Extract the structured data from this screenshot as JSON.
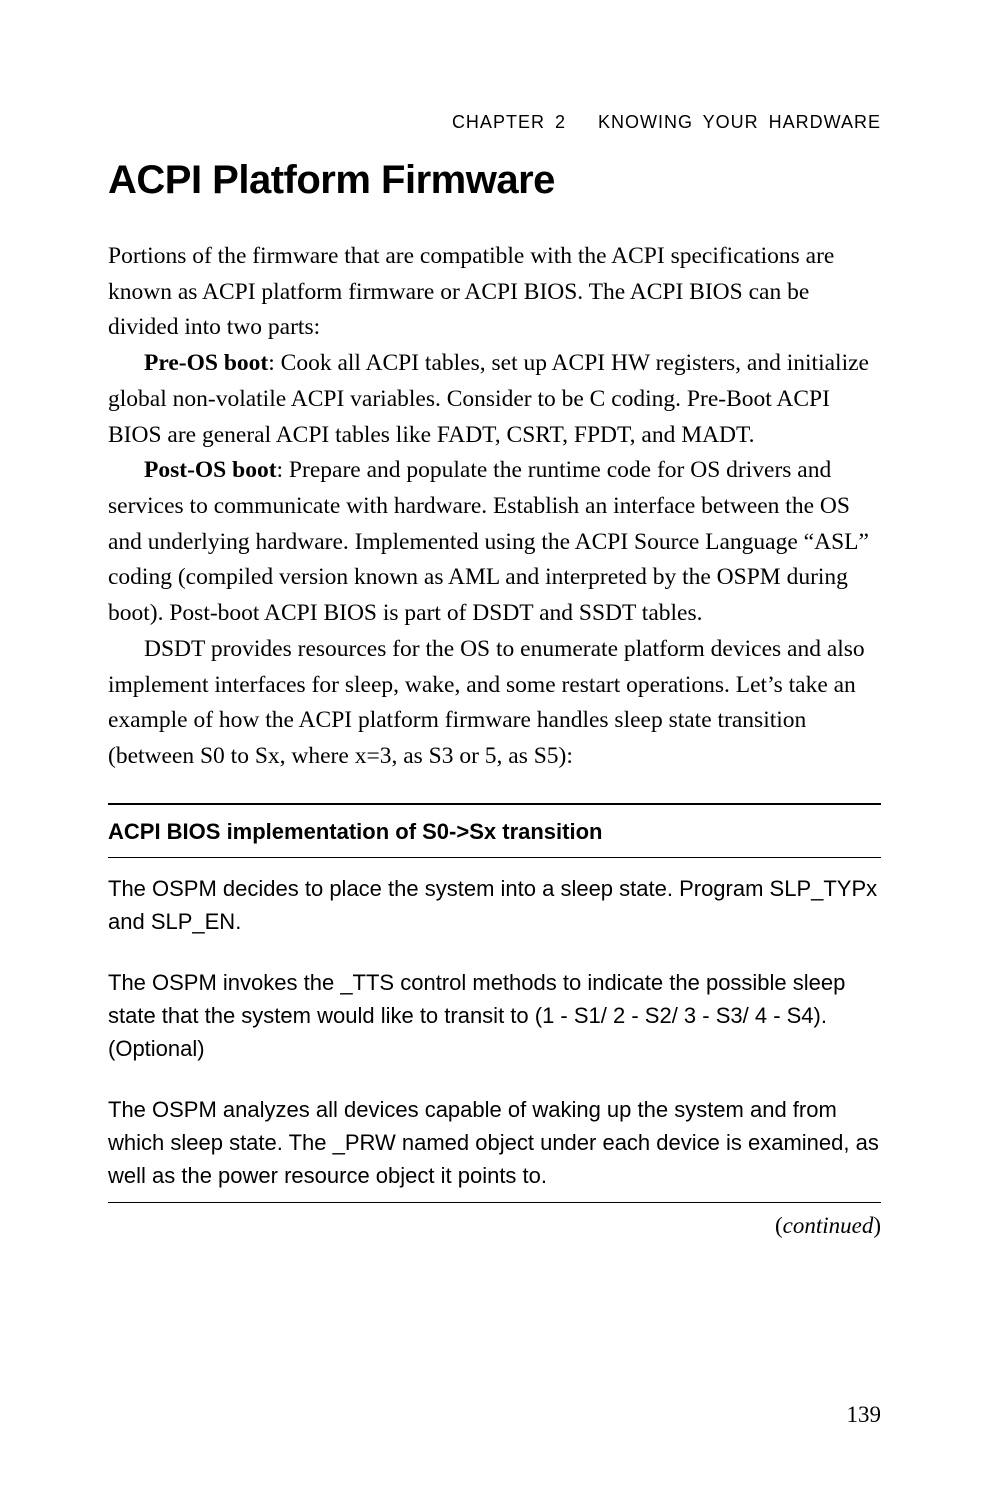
{
  "header": {
    "chapter": "CHAPTER 2",
    "title": "KNOWING YOUR HARDWARE"
  },
  "heading": "ACPI Platform Firmware",
  "paragraphs": {
    "p1": "Portions of the firmware that are compatible with the ACPI specifications are known as ACPI platform firmware or ACPI BIOS. The ACPI BIOS can be divided into two parts:",
    "p2_bold": "Pre-OS boot",
    "p2_rest": ": Cook all ACPI tables, set up ACPI HW registers, and initialize global non-volatile ACPI variables. Consider to be C coding. Pre-Boot ACPI BIOS are general ACPI tables like FADT, CSRT, FPDT, and MADT.",
    "p3_bold": "Post-OS boot",
    "p3_rest": ": Prepare and populate the runtime code for OS drivers and services to communicate with hardware. Establish an interface between the OS and underlying hardware. Implemented using the ACPI Source Language “ASL” coding (compiled version known as AML and interpreted by the OSPM during boot). Post-boot ACPI BIOS is part of DSDT and SSDT tables.",
    "p4": "DSDT provides resources for the OS to enumerate platform devices and also implement interfaces for sleep, wake, and some restart operations. Let’s take an example of how the ACPI platform firmware handles sleep state transition (between S0 to Sx, where x=3, as S3 or 5, as S5):"
  },
  "table": {
    "header": "ACPI BIOS implementation of S0->Sx transition",
    "rows": [
      "The OSPM decides to place the system into a sleep state. Program SLP_TYPx and SLP_EN.",
      "The OSPM invokes the _TTS control methods to indicate the possible sleep state that the system would like to transit to  (1 - S1/ 2 - S2/ 3 - S3/ 4 - S4). (Optional)",
      "The OSPM analyzes all devices capable of waking up the system and from which sleep state. The _PRW  named object under each device is examined, as well as the power resource object it points to."
    ]
  },
  "continued_label": "continued",
  "page_number": "139",
  "colors": {
    "text": "#000000",
    "background": "#ffffff",
    "rule": "#000000"
  },
  "fonts": {
    "body_family": "Georgia, Times New Roman, serif",
    "heading_family": "Arial, Helvetica, sans-serif",
    "body_size_pt": 17,
    "heading_size_pt": 30,
    "table_size_pt": 16
  }
}
